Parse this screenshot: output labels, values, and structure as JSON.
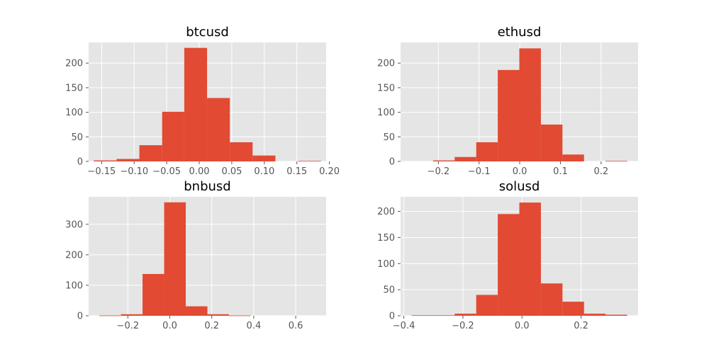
{
  "figure": {
    "background": "#ffffff",
    "plot_background": "#e5e5e5",
    "grid_color": "#ffffff",
    "bar_color": "#e24a33"
  },
  "chart_data": [
    {
      "type": "bar",
      "title": "btcusd",
      "bin_edges": [
        -0.162,
        -0.127,
        -0.092,
        -0.057,
        -0.023,
        0.012,
        0.047,
        0.082,
        0.117,
        0.152,
        0.187
      ],
      "values": [
        2,
        5,
        33,
        101,
        231,
        129,
        39,
        12,
        0,
        1
      ],
      "xlim": [
        -0.17,
        0.195
      ],
      "ylim": [
        0,
        242
      ],
      "xticks": [
        -0.15,
        -0.1,
        -0.05,
        0.0,
        0.05,
        0.1,
        0.15,
        0.2
      ],
      "xtick_labels": [
        "−0.15",
        "−0.10",
        "−0.05",
        "0.00",
        "0.05",
        "0.10",
        "0.15",
        "0.20"
      ],
      "yticks": [
        0,
        50,
        100,
        150,
        200
      ],
      "ytick_labels": [
        "0",
        "50",
        "100",
        "150",
        "200"
      ],
      "grid": true
    },
    {
      "type": "bar",
      "title": "ethusd",
      "bin_edges": [
        -0.266,
        -0.213,
        -0.16,
        -0.107,
        -0.054,
        -0.001,
        0.052,
        0.105,
        0.158,
        0.211,
        0.264
      ],
      "values": [
        0,
        2,
        9,
        39,
        186,
        230,
        75,
        14,
        0,
        1
      ],
      "xlim": [
        -0.293,
        0.291
      ],
      "ylim": [
        0,
        242
      ],
      "xticks": [
        -0.2,
        -0.1,
        0.0,
        0.1,
        0.2
      ],
      "xtick_labels": [
        "−0.2",
        "−0.1",
        "0.0",
        "0.1",
        "0.2"
      ],
      "yticks": [
        0,
        50,
        100,
        150,
        200
      ],
      "ytick_labels": [
        "0",
        "50",
        "100",
        "150",
        "200"
      ],
      "grid": true
    },
    {
      "type": "bar",
      "title": "bnbusd",
      "bin_edges": [
        -0.336,
        -0.233,
        -0.13,
        -0.027,
        0.076,
        0.179,
        0.282,
        0.385,
        0.488,
        0.591,
        0.694
      ],
      "values": [
        1,
        5,
        137,
        372,
        31,
        5,
        1,
        0,
        0,
        0
      ],
      "xlim": [
        -0.387,
        0.745
      ],
      "ylim": [
        0,
        390
      ],
      "xticks": [
        -0.2,
        0.0,
        0.2,
        0.4,
        0.6
      ],
      "xtick_labels": [
        "−0.2",
        "0.0",
        "0.2",
        "0.4",
        "0.6"
      ],
      "yticks": [
        0,
        100,
        200,
        300
      ],
      "ytick_labels": [
        "0",
        "100",
        "200",
        "300"
      ],
      "grid": true
    },
    {
      "type": "bar",
      "title": "solusd",
      "bin_edges": [
        -0.374,
        -0.301,
        -0.228,
        -0.155,
        -0.082,
        -0.009,
        0.064,
        0.137,
        0.21,
        0.283,
        0.356
      ],
      "values": [
        1,
        1,
        4,
        40,
        195,
        217,
        62,
        27,
        4,
        2
      ],
      "xlim": [
        -0.411,
        0.393
      ],
      "ylim": [
        0,
        228
      ],
      "xticks": [
        -0.4,
        -0.2,
        0.0,
        0.2
      ],
      "xtick_labels": [
        "−0.4",
        "−0.2",
        "0.0",
        "0.2"
      ],
      "yticks": [
        0,
        50,
        100,
        150,
        200
      ],
      "ytick_labels": [
        "0",
        "50",
        "100",
        "150",
        "200"
      ],
      "grid": true
    }
  ]
}
